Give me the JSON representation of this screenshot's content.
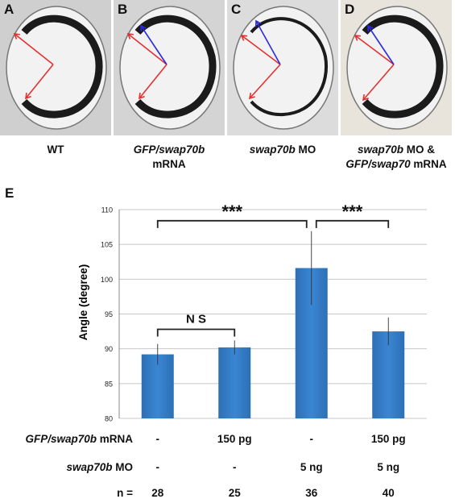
{
  "panels": [
    {
      "letter": "A",
      "caption_lines": [
        [
          {
            "t": "WT",
            "i": false
          }
        ]
      ]
    },
    {
      "letter": "B",
      "caption_lines": [
        [
          {
            "t": "GFP/swap70b",
            "i": true
          }
        ],
        [
          {
            "t": "mRNA",
            "i": false
          }
        ]
      ]
    },
    {
      "letter": "C",
      "caption_lines": [
        [
          {
            "t": "swap70b",
            "i": true
          },
          {
            "t": " MO",
            "i": false
          }
        ]
      ]
    },
    {
      "letter": "D",
      "caption_lines": [
        [
          {
            "t": "swap70b",
            "i": true
          },
          {
            "t": " MO &",
            "i": false
          }
        ],
        [
          {
            "t": "GFP/swap70",
            "i": true
          },
          {
            "t": " mRNA",
            "i": false
          }
        ]
      ]
    }
  ],
  "panel_e_letter": "E",
  "colors": {
    "bar": "#3a86d4",
    "bar_dark": "#2d6fb4",
    "bracket": "#222222",
    "red_arrow": "#e53030",
    "blue_arrow": "#2a2ae0"
  },
  "chart_data": {
    "type": "bar",
    "ylabel": "Angle (degree)",
    "ylim": [
      80,
      110
    ],
    "yticks": [
      80,
      85,
      90,
      95,
      100,
      105,
      110
    ],
    "grid": true,
    "categories": [
      "WT",
      "GFP/swap70b mRNA",
      "swap70b MO",
      "swap70b MO & GFP/swap70 mRNA"
    ],
    "values": [
      89.2,
      90.2,
      101.6,
      92.5
    ],
    "errors": [
      1.5,
      1.0,
      5.3,
      2.0
    ],
    "significance": [
      {
        "from": 0,
        "to": 1,
        "label": "N S"
      },
      {
        "from": 0,
        "to": 2,
        "label": "***"
      },
      {
        "from": 2,
        "to": 3,
        "label": "***"
      }
    ]
  },
  "table": {
    "rows": [
      {
        "label_parts": [
          {
            "t": "GFP/swap70b",
            "i": true
          },
          {
            "t": " mRNA",
            "i": false
          }
        ],
        "cells": [
          "-",
          "150 pg",
          "-",
          "150 pg"
        ]
      },
      {
        "label_parts": [
          {
            "t": "swap70b",
            "i": true
          },
          {
            "t": " MO",
            "i": false
          }
        ],
        "cells": [
          "-",
          "-",
          "5 ng",
          "5 ng"
        ]
      },
      {
        "label_parts": [
          {
            "t": "n =",
            "i": false
          }
        ],
        "cells": [
          "28",
          "25",
          "36",
          "40"
        ]
      }
    ]
  }
}
